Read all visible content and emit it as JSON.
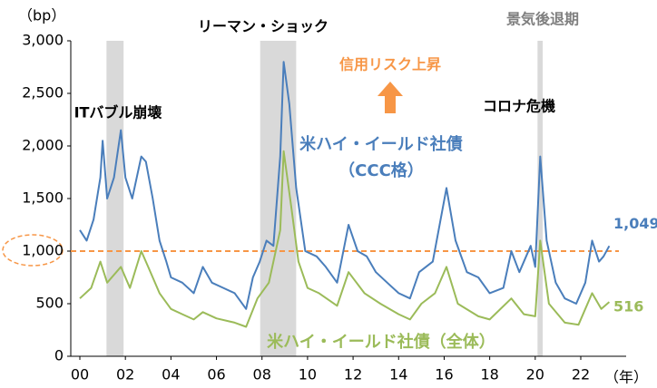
{
  "chart_data": {
    "type": "line",
    "y_unit": "（bp）",
    "x_unit": "（年）",
    "xlim": [
      2000,
      2023.3
    ],
    "xticks": [
      {
        "value": 2000,
        "label": "00"
      },
      {
        "value": 2002,
        "label": "02"
      },
      {
        "value": 2004,
        "label": "04"
      },
      {
        "value": 2006,
        "label": "06"
      },
      {
        "value": 2008,
        "label": "08"
      },
      {
        "value": 2010,
        "label": "10"
      },
      {
        "value": 2012,
        "label": "12"
      },
      {
        "value": 2014,
        "label": "14"
      },
      {
        "value": 2016,
        "label": "16"
      },
      {
        "value": 2018,
        "label": "18"
      },
      {
        "value": 2020,
        "label": "20"
      },
      {
        "value": 2022,
        "label": "22"
      }
    ],
    "ylim": [
      0,
      3000
    ],
    "yticks": [
      0,
      500,
      {
        "value": 1000,
        "label": "1,000"
      },
      {
        "value": 1500,
        "label": "1,500"
      },
      {
        "value": 2000,
        "label": "2,000"
      },
      {
        "value": 2500,
        "label": "2,500"
      },
      {
        "value": 3000,
        "label": "3,000"
      }
    ],
    "grid": false,
    "reference_line": {
      "value": 1000,
      "color": "#f79646"
    },
    "recessions": [
      [
        2001.17,
        2001.92
      ],
      [
        2007.92,
        2009.5
      ],
      [
        2020.1,
        2020.33
      ]
    ],
    "annotations": {
      "it_bubble": "ITバブル崩壊",
      "lehman": "リーマン・ショック",
      "recession": "景気後退期",
      "covid": "コロナ危機",
      "credit_risk": "信用リスク上昇"
    },
    "series": [
      {
        "name": "米ハイ・イールド社債",
        "sub_name": "（CCC格）",
        "color": "#4a7ebb",
        "end_label": "1,049",
        "x": [
          2000.0,
          2000.3,
          2000.6,
          2000.9,
          2001.0,
          2001.2,
          2001.5,
          2001.8,
          2002.0,
          2002.3,
          2002.7,
          2002.9,
          2003.2,
          2003.5,
          2003.8,
          2004.0,
          2004.5,
          2005.0,
          2005.4,
          2005.8,
          2006.3,
          2006.8,
          2007.3,
          2007.6,
          2007.9,
          2008.2,
          2008.5,
          2008.8,
          2008.95,
          2009.2,
          2009.5,
          2009.9,
          2010.4,
          2010.8,
          2011.3,
          2011.8,
          2012.2,
          2012.6,
          2013.0,
          2013.5,
          2014.0,
          2014.5,
          2014.9,
          2015.5,
          2016.1,
          2016.5,
          2017.0,
          2017.5,
          2018.0,
          2018.6,
          2018.95,
          2019.3,
          2019.8,
          2020.0,
          2020.22,
          2020.5,
          2020.9,
          2021.3,
          2021.8,
          2022.2,
          2022.5,
          2022.8,
          2023.0,
          2023.25
        ],
        "values": [
          1200,
          1100,
          1300,
          1700,
          2050,
          1500,
          1700,
          2150,
          1700,
          1500,
          1900,
          1850,
          1500,
          1100,
          900,
          750,
          700,
          600,
          850,
          700,
          650,
          600,
          450,
          750,
          900,
          1100,
          1050,
          1900,
          2800,
          2400,
          1600,
          1000,
          950,
          850,
          700,
          1250,
          1000,
          950,
          800,
          700,
          600,
          550,
          800,
          900,
          1600,
          1100,
          800,
          750,
          600,
          650,
          1000,
          800,
          1050,
          850,
          1900,
          1100,
          700,
          550,
          500,
          700,
          1100,
          900,
          950,
          1049
        ]
      },
      {
        "name": "米ハイ・イールド社債（全体）",
        "color": "#9bbb59",
        "end_label": "516",
        "x": [
          2000.0,
          2000.5,
          2000.9,
          2001.2,
          2001.8,
          2002.2,
          2002.7,
          2003.0,
          2003.5,
          2004.0,
          2004.5,
          2005.0,
          2005.4,
          2006.0,
          2006.8,
          2007.3,
          2007.8,
          2008.3,
          2008.8,
          2008.95,
          2009.3,
          2009.6,
          2010.0,
          2010.5,
          2011.3,
          2011.8,
          2012.5,
          2013.2,
          2014.0,
          2014.5,
          2015.0,
          2015.6,
          2016.1,
          2016.6,
          2017.5,
          2018.0,
          2018.95,
          2019.5,
          2020.0,
          2020.22,
          2020.6,
          2021.3,
          2021.9,
          2022.5,
          2022.9,
          2023.25
        ],
        "values": [
          550,
          650,
          900,
          700,
          850,
          650,
          1000,
          850,
          600,
          450,
          400,
          350,
          420,
          360,
          320,
          280,
          550,
          700,
          1200,
          1950,
          1400,
          900,
          650,
          600,
          480,
          800,
          600,
          500,
          400,
          350,
          500,
          600,
          850,
          500,
          380,
          350,
          550,
          400,
          380,
          1100,
          500,
          320,
          300,
          600,
          450,
          516
        ]
      }
    ]
  }
}
